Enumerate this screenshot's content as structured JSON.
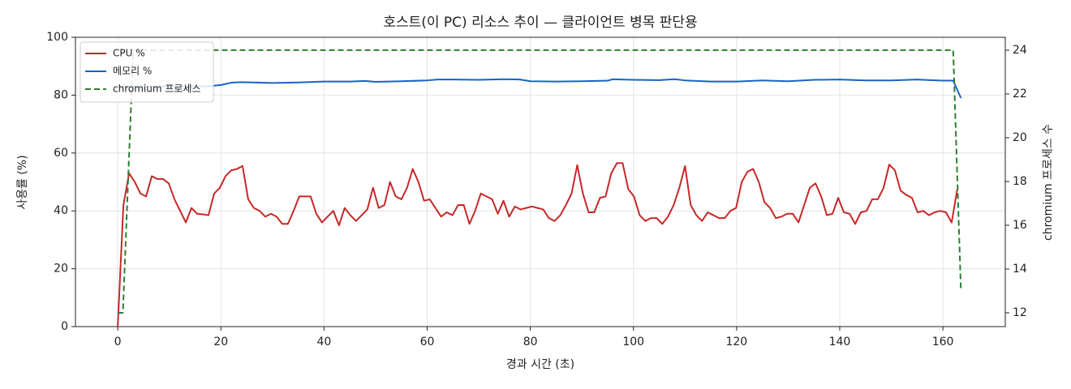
{
  "chart_data": {
    "type": "line",
    "title": "호스트(이 PC) 리소스 추이 — 클라이언트 병목 판단용",
    "x_label": "경과 시간 (초)",
    "y_label": "사용률 (%)",
    "y2_label": "chromium 프로세스 수",
    "xlim": [
      -8.2,
      172.1
    ],
    "xticks": [
      0,
      20,
      40,
      60,
      80,
      100,
      120,
      140,
      160
    ],
    "ylim": [
      0,
      100
    ],
    "yticks": [
      0,
      20,
      40,
      60,
      80,
      100
    ],
    "y2lim": [
      11.37,
      24.59
    ],
    "y2ticks": [
      12,
      14,
      16,
      18,
      20,
      22,
      24
    ],
    "grid": true,
    "legend": "upper-left",
    "series": [
      {
        "name": "CPU %",
        "color": "#c62828",
        "linestyle": "solid",
        "x": [
          0,
          1.1,
          2.2,
          3.3,
          4.4,
          5.5,
          6.6,
          7.7,
          8.8,
          9.9,
          11,
          12.1,
          13.2,
          14.3,
          15.4,
          16.5,
          17.6,
          18.7,
          19.8,
          20.9,
          22,
          23.1,
          24.2,
          25.3,
          26.4,
          27.5,
          28.6,
          29.7,
          30.8,
          31.9,
          33,
          34.1,
          35.2,
          36.3,
          37.4,
          38.5,
          39.6,
          40.7,
          41.8,
          42.9,
          44,
          45.1,
          46.2,
          47.3,
          48.4,
          49.5,
          50.6,
          51.7,
          52.8,
          53.9,
          55,
          56.1,
          57.2,
          58.3,
          59.4,
          60.5,
          61.6,
          62.7,
          63.8,
          64.9,
          66,
          67.1,
          68.2,
          69.3,
          70.4,
          71.5,
          72.6,
          73.7,
          74.8,
          75.9,
          77,
          78.1,
          79.2,
          80.3,
          81.4,
          82.5,
          83.6,
          84.7,
          85.8,
          86.9,
          88,
          89.1,
          90.2,
          91.3,
          92.4,
          93.5,
          94.6,
          95.7,
          96.8,
          97.9,
          99,
          100.1,
          101.2,
          102.3,
          103.4,
          104.5,
          105.6,
          106.7,
          107.8,
          108.9,
          110,
          111.1,
          112.2,
          113.3,
          114.4,
          115.5,
          116.6,
          117.7,
          118.8,
          119.9,
          121,
          122.1,
          123.2,
          124.3,
          125.4,
          126.5,
          127.6,
          128.7,
          129.8,
          130.9,
          132,
          133.1,
          134.2,
          135.3,
          136.4,
          137.5,
          138.6,
          139.7,
          140.8,
          141.9,
          143,
          144.1,
          145.2,
          146.3,
          147.4,
          148.5,
          149.6,
          150.7,
          151.8,
          152.9,
          154,
          155.1,
          156.2,
          157.3,
          158.4,
          159.5,
          160.6,
          161.7,
          162.8
        ],
        "values": [
          0,
          42,
          53,
          50,
          46,
          45,
          52,
          51,
          51,
          49.5,
          44,
          40,
          36,
          41,
          39,
          38.8,
          38.5,
          46,
          48,
          52,
          54,
          54.5,
          55.5,
          44,
          41,
          40,
          38,
          39,
          38,
          35.5,
          35.5,
          40,
          45,
          45,
          45,
          39,
          36,
          38,
          40,
          35,
          41,
          38.5,
          36.5,
          38.5,
          40.5,
          48,
          41,
          42,
          50,
          45,
          44,
          48,
          54.5,
          50,
          43.5,
          44,
          41,
          38,
          39.5,
          38.5,
          42,
          42,
          35.5,
          40,
          46,
          45,
          44,
          39,
          43.5,
          38,
          41.5,
          40.5,
          41,
          41.5,
          41,
          40.5,
          37.5,
          36.5,
          38.5,
          42,
          46,
          55.8,
          46,
          39.5,
          39.5,
          44.5,
          45,
          53,
          56.5,
          56.5,
          47.5,
          45,
          38.5,
          36.5,
          37.5,
          37.5,
          35.5,
          38,
          42,
          48,
          55.5,
          42,
          38.5,
          36.5,
          39.5,
          38.5,
          37.5,
          37.5,
          40,
          41,
          50,
          53.5,
          54.5,
          50,
          43,
          41,
          37.5,
          38,
          39,
          39,
          36,
          42,
          48,
          49.5,
          45,
          38.5,
          39,
          44.5,
          39.5,
          39,
          35.5,
          39.5,
          40,
          44,
          44,
          48,
          56,
          54,
          47,
          45.5,
          44.5,
          39.5,
          40,
          38.5,
          39.5,
          40,
          39.5,
          36,
          47.5
        ]
      },
      {
        "name": "메모리 %",
        "color": "#1565c0",
        "linestyle": "solid",
        "x": [
          0,
          10,
          17,
          20,
          22,
          24,
          30,
          35,
          40,
          45,
          48,
          50,
          55,
          60,
          62,
          65,
          70,
          75,
          78,
          80,
          85,
          90,
          95,
          96,
          100,
          105,
          108,
          110,
          115,
          120,
          125,
          130,
          135,
          140,
          145,
          150,
          155,
          160,
          162,
          163.5
        ],
        "values": [
          83,
          83,
          83,
          83.5,
          84.3,
          84.5,
          84.2,
          84.4,
          84.7,
          84.7,
          84.9,
          84.6,
          84.8,
          85.1,
          85.4,
          85.4,
          85.3,
          85.5,
          85.4,
          84.8,
          84.7,
          84.8,
          85.0,
          85.5,
          85.3,
          85.2,
          85.5,
          85.1,
          84.7,
          84.7,
          85.1,
          84.8,
          85.3,
          85.4,
          85.1,
          85.1,
          85.4,
          85.0,
          85.0,
          79
        ]
      },
      {
        "name": "chromium 프로세스",
        "color": "#2e7d32",
        "linestyle": "dashed",
        "axis": "y2",
        "x": [
          0,
          1,
          3,
          162,
          163.5
        ],
        "values": [
          12,
          12,
          24,
          24,
          13
        ]
      }
    ]
  }
}
